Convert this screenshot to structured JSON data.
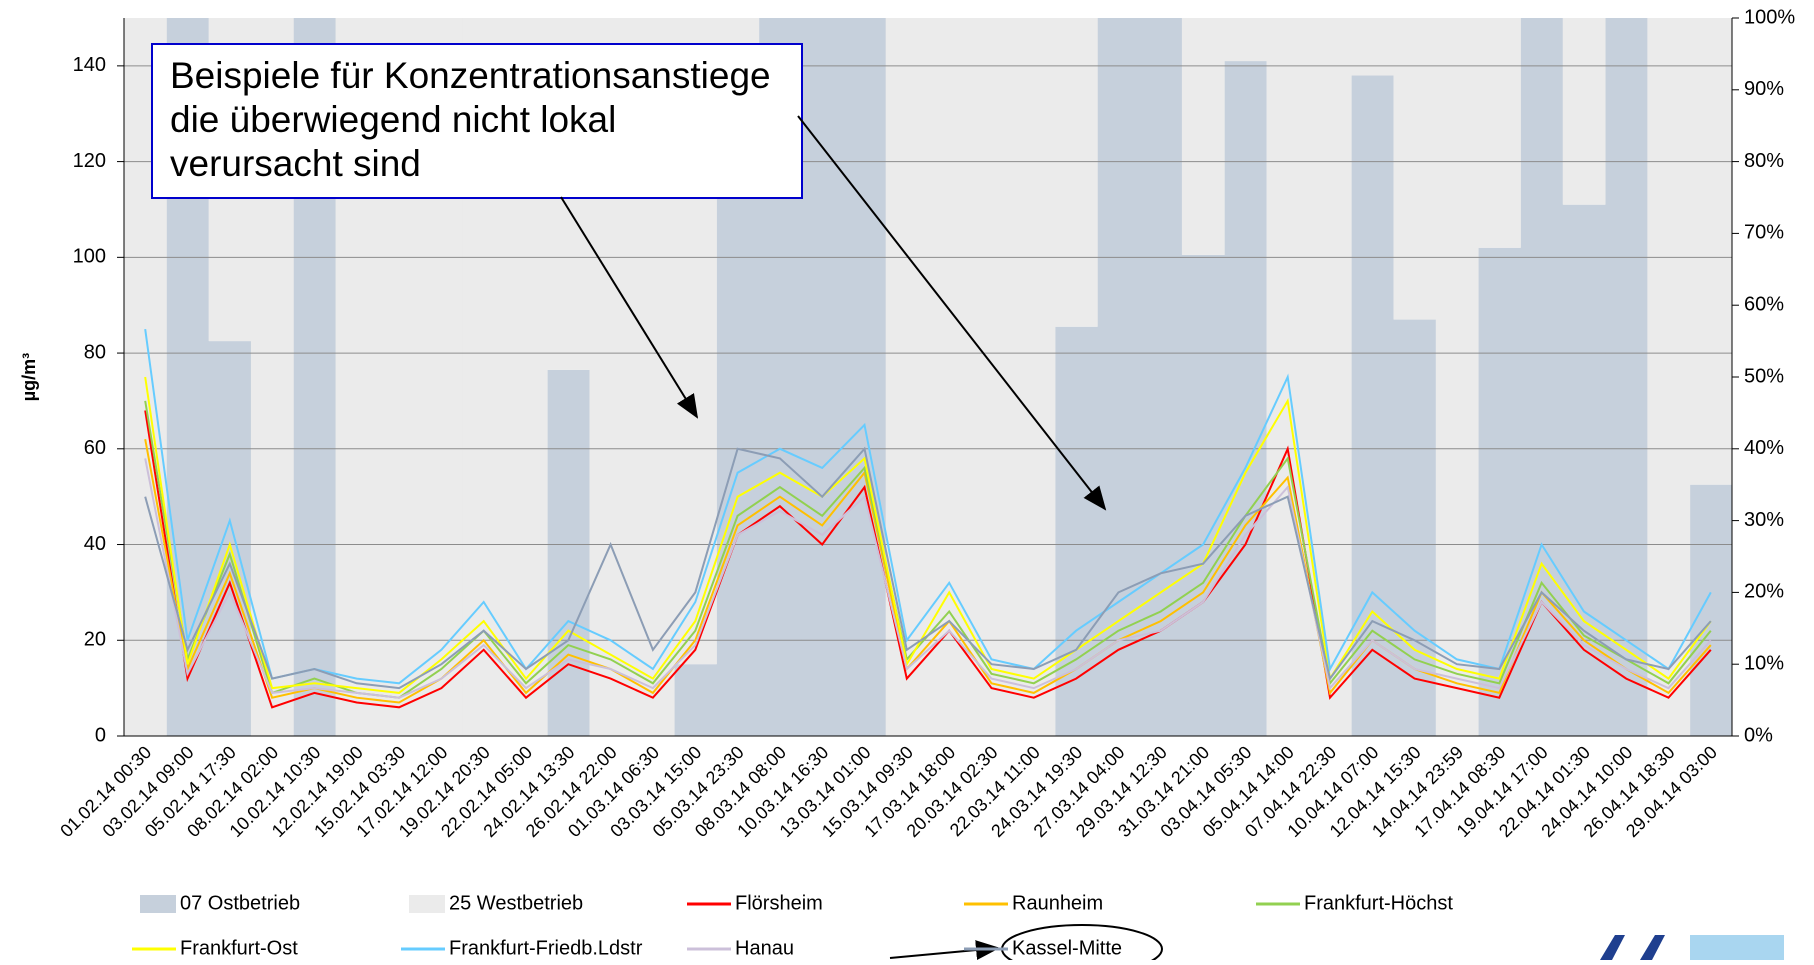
{
  "chart_data": {
    "type": "line",
    "y_label": "µg/m³",
    "annotation": [
      "Beispiele für Konzentrationsanstiege",
      "die  überwiegend nicht lokal",
      "verursacht sind"
    ],
    "categories": [
      "01.02.14 00:30",
      "03.02.14 09:00",
      "05.02.14 17:30",
      "08.02.14 02:00",
      "10.02.14 10:30",
      "12.02.14 19:00",
      "15.02.14 03:30",
      "17.02.14 12:00",
      "19.02.14 20:30",
      "22.02.14 05:00",
      "24.02.14 13:30",
      "26.02.14 22:00",
      "01.03.14 06:30",
      "03.03.14 15:00",
      "05.03.14 23:30",
      "08.03.14 08:00",
      "10.03.14 16:30",
      "13.03.14 01:00",
      "15.03.14 09:30",
      "17.03.14 18:00",
      "20.03.14 02:30",
      "22.03.14 11:00",
      "24.03.14 19:30",
      "27.03.14 04:00",
      "29.03.14 12:30",
      "31.03.14 21:00",
      "03.04.14 05:30",
      "05.04.14 14:00",
      "07.04.14 22:30",
      "10.04.14 07:00",
      "12.04.14 15:30",
      "14.04.14 23:59",
      "17.04.14 08:30",
      "19.04.14 17:00",
      "22.04.14 01:30",
      "24.04.14 10:00",
      "26.04.14 18:30",
      "29.04.14 03:00"
    ],
    "ylim": [
      0,
      150
    ],
    "yticks": [
      0,
      20,
      40,
      60,
      80,
      100,
      120,
      140
    ],
    "y2lim": [
      0,
      100
    ],
    "y2ticks": [
      {
        "value": 0,
        "label": "0%"
      },
      {
        "value": 10,
        "label": "10%"
      },
      {
        "value": 20,
        "label": "20%"
      },
      {
        "value": 30,
        "label": "30%"
      },
      {
        "value": 40,
        "label": "40%"
      },
      {
        "value": 50,
        "label": "50%"
      },
      {
        "value": 60,
        "label": "60%"
      },
      {
        "value": 70,
        "label": "70%"
      },
      {
        "value": 80,
        "label": "80%"
      },
      {
        "value": 90,
        "label": "90%"
      },
      {
        "value": 100,
        "label": "100%"
      }
    ],
    "grid": true,
    "series": [
      {
        "name": "07 Ostbetrieb",
        "type": "bar",
        "axis": "y2",
        "color": "#c6d0dc",
        "values": [
          0,
          100,
          55,
          0,
          100,
          0,
          0,
          0,
          0,
          0,
          51,
          0,
          0,
          10,
          75,
          100,
          100,
          100,
          0,
          0,
          0,
          0,
          57,
          100,
          100,
          67,
          94,
          0,
          0,
          92,
          58,
          0,
          68,
          100,
          74,
          100,
          0,
          35
        ]
      },
      {
        "name": "25 Westbetrieb",
        "type": "bar",
        "axis": "y2",
        "color": "#ebebeb",
        "values": [
          100,
          0,
          45,
          100,
          0,
          100,
          100,
          100,
          100,
          100,
          49,
          100,
          100,
          90,
          25,
          0,
          0,
          0,
          100,
          100,
          100,
          100,
          43,
          0,
          0,
          33,
          6,
          100,
          100,
          8,
          42,
          100,
          32,
          0,
          26,
          0,
          100,
          65
        ]
      },
      {
        "name": "Flörsheim",
        "type": "line",
        "color": "#ff0000",
        "values": [
          68,
          12,
          32,
          6,
          9,
          7,
          6,
          10,
          18,
          8,
          15,
          12,
          8,
          18,
          42,
          48,
          40,
          52,
          12,
          22,
          10,
          8,
          12,
          18,
          22,
          28,
          40,
          60,
          8,
          18,
          12,
          10,
          8,
          28,
          18,
          12,
          8,
          18
        ]
      },
      {
        "name": "Raunheim",
        "type": "line",
        "color": "#ffc000",
        "values": [
          62,
          14,
          34,
          8,
          10,
          8,
          7,
          12,
          20,
          9,
          17,
          14,
          9,
          20,
          44,
          50,
          44,
          55,
          14,
          24,
          11,
          9,
          14,
          20,
          24,
          30,
          44,
          54,
          9,
          20,
          14,
          11,
          9,
          30,
          20,
          14,
          9,
          19
        ]
      },
      {
        "name": "Frankfurt-Höchst",
        "type": "line",
        "color": "#92d050",
        "values": [
          70,
          16,
          38,
          9,
          12,
          9,
          8,
          14,
          22,
          11,
          19,
          16,
          11,
          22,
          46,
          52,
          46,
          56,
          16,
          26,
          13,
          11,
          16,
          22,
          26,
          32,
          46,
          58,
          11,
          22,
          16,
          13,
          11,
          32,
          21,
          16,
          11,
          22
        ]
      },
      {
        "name": "Frankfurt-Ost",
        "type": "line",
        "color": "#ffff00",
        "values": [
          75,
          15,
          40,
          10,
          11,
          10,
          9,
          16,
          24,
          12,
          22,
          17,
          12,
          24,
          50,
          55,
          50,
          58,
          15,
          30,
          14,
          12,
          18,
          24,
          30,
          36,
          55,
          70,
          12,
          26,
          18,
          14,
          12,
          36,
          24,
          18,
          12,
          24
        ]
      },
      {
        "name": "Frankfurt-Friedb.Ldstr",
        "type": "line",
        "color": "#66ccff",
        "values": [
          85,
          20,
          45,
          12,
          14,
          12,
          11,
          18,
          28,
          14,
          24,
          20,
          14,
          28,
          55,
          60,
          56,
          65,
          20,
          32,
          16,
          14,
          22,
          28,
          34,
          40,
          56,
          75,
          14,
          30,
          22,
          16,
          14,
          40,
          26,
          20,
          14,
          30
        ]
      },
      {
        "name": "Hanau",
        "type": "line",
        "color": "#ccc0da",
        "values": [
          58,
          13,
          30,
          9,
          10,
          9,
          8,
          12,
          19,
          10,
          16,
          14,
          10,
          19,
          42,
          47,
          42,
          50,
          14,
          22,
          12,
          10,
          14,
          20,
          22,
          28,
          42,
          52,
          10,
          20,
          14,
          12,
          10,
          28,
          19,
          14,
          10,
          20
        ]
      },
      {
        "name": "Kassel-Mitte",
        "type": "line",
        "color": "#8c9db5",
        "values": [
          50,
          18,
          36,
          12,
          14,
          11,
          10,
          15,
          22,
          14,
          20,
          40,
          18,
          30,
          60,
          58,
          50,
          60,
          18,
          24,
          15,
          14,
          18,
          30,
          34,
          36,
          46,
          50,
          12,
          24,
          20,
          15,
          14,
          30,
          22,
          16,
          14,
          24
        ]
      }
    ]
  }
}
